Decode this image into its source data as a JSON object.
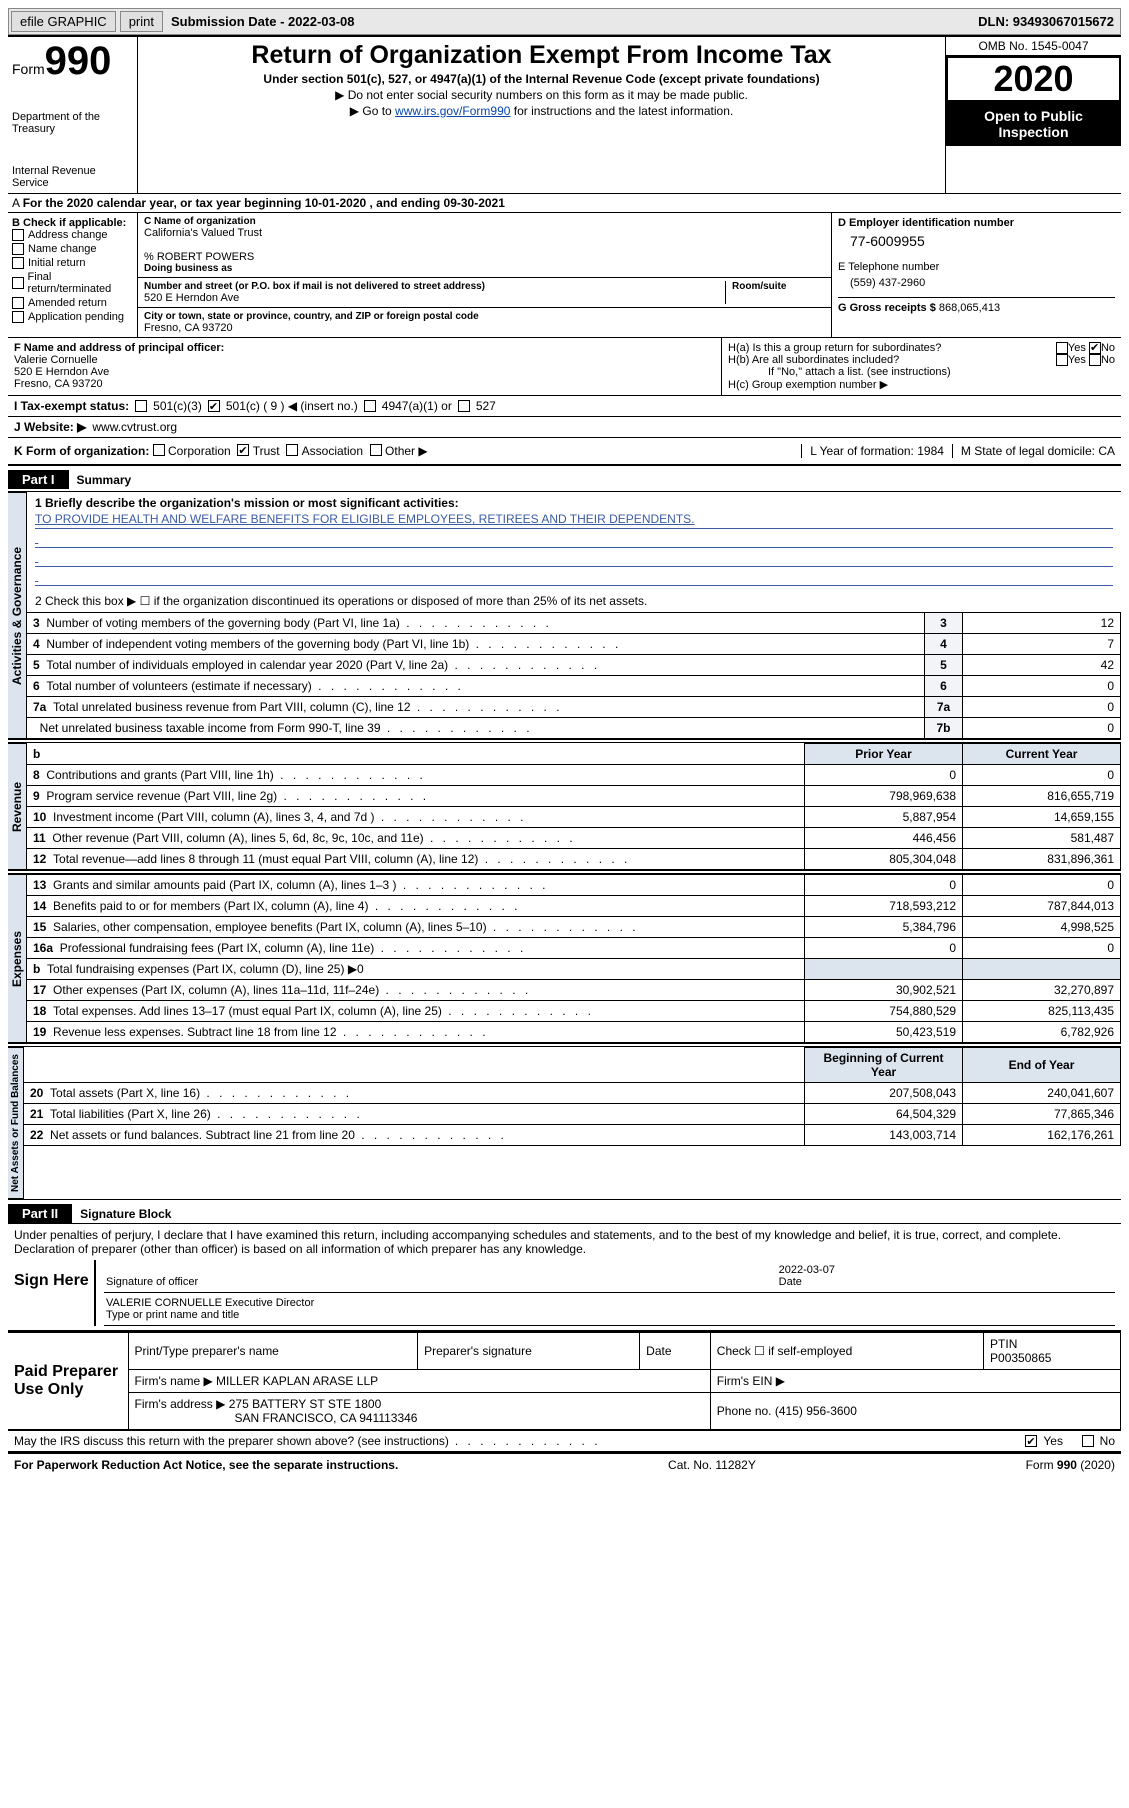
{
  "toolbar": {
    "efile_label": "efile GRAPHIC",
    "print_label": "print",
    "submission_label": "Submission Date - 2022-03-08",
    "dln_label": "DLN: 93493067015672"
  },
  "header": {
    "form_word": "Form",
    "form_number": "990",
    "department": "Department of the Treasury",
    "irs": "Internal Revenue Service",
    "title": "Return of Organization Exempt From Income Tax",
    "subtitle": "Under section 501(c), 527, or 4947(a)(1) of the Internal Revenue Code (except private foundations)",
    "note1": "▶ Do not enter social security numbers on this form as it may be made public.",
    "note2_pre": "▶ Go to ",
    "note2_link": "www.irs.gov/Form990",
    "note2_post": " for instructions and the latest information.",
    "omb": "OMB No. 1545-0047",
    "year": "2020",
    "inspection": "Open to Public Inspection"
  },
  "row_A": "For the 2020 calendar year, or tax year beginning 10-01-2020    , and ending 09-30-2021",
  "section_B": {
    "label": "B Check if applicable:",
    "items": [
      "Address change",
      "Name change",
      "Initial return",
      "Final return/terminated",
      "Amended return",
      "Application pending"
    ]
  },
  "section_C": {
    "name_label": "C Name of organization",
    "name": "California's Valued Trust",
    "care_of": "% ROBERT POWERS",
    "dba_label": "Doing business as",
    "street_label": "Number and street (or P.O. box if mail is not delivered to street address)",
    "room_label": "Room/suite",
    "street": "520 E Herndon Ave",
    "city_label": "City or town, state or province, country, and ZIP or foreign postal code",
    "city": "Fresno, CA  93720"
  },
  "section_D": {
    "label": "D Employer identification number",
    "ein": "77-6009955"
  },
  "section_E": {
    "label": "E Telephone number",
    "phone": "(559) 437-2960"
  },
  "section_G": {
    "label": "G Gross receipts $",
    "value": "868,065,413"
  },
  "section_F": {
    "label": "F Name and address of principal officer:",
    "name": "Valerie Cornuelle",
    "street": "520 E Herndon Ave",
    "city": "Fresno, CA  93720"
  },
  "section_H": {
    "ha": "H(a)  Is this a group return for subordinates?",
    "hb": "H(b)  Are all subordinates included?",
    "hb_note": "If \"No,\" attach a list. (see instructions)",
    "hc": "H(c)  Group exemption number ▶",
    "yes": "Yes",
    "no": "No"
  },
  "row_I": {
    "label": "I  Tax-exempt status:",
    "opts": [
      "501(c)(3)",
      "501(c) ( 9 ) ◀ (insert no.)",
      "4947(a)(1) or",
      "527"
    ]
  },
  "row_J": {
    "label": "J  Website: ▶",
    "url": "www.cvtrust.org"
  },
  "row_K": {
    "label": "K Form of organization:",
    "opts": [
      "Corporation",
      "Trust",
      "Association",
      "Other ▶"
    ],
    "L": "L Year of formation: 1984",
    "M": "M State of legal domicile: CA"
  },
  "part1": {
    "tab": "Part I",
    "title": "Summary",
    "q1_label": "1  Briefly describe the organization's mission or most significant activities:",
    "q1_text": "TO PROVIDE HEALTH AND WELFARE BENEFITS FOR ELIGIBLE EMPLOYEES, RETIREES AND THEIR DEPENDENTS.",
    "q2": "2   Check this box ▶ ☐  if the organization discontinued its operations or disposed of more than 25% of its net assets.",
    "governance": [
      {
        "n": "3",
        "t": "Number of voting members of the governing body (Part VI, line 1a)",
        "k": "3",
        "v": "12"
      },
      {
        "n": "4",
        "t": "Number of independent voting members of the governing body (Part VI, line 1b)",
        "k": "4",
        "v": "7"
      },
      {
        "n": "5",
        "t": "Total number of individuals employed in calendar year 2020 (Part V, line 2a)",
        "k": "5",
        "v": "42"
      },
      {
        "n": "6",
        "t": "Total number of volunteers (estimate if necessary)",
        "k": "6",
        "v": "0"
      },
      {
        "n": "7a",
        "t": "Total unrelated business revenue from Part VIII, column (C), line 12",
        "k": "7a",
        "v": "0"
      },
      {
        "n": "",
        "t": "Net unrelated business taxable income from Form 990-T, line 39",
        "k": "7b",
        "v": "0"
      }
    ],
    "rev_exp_headers": {
      "prior": "Prior Year",
      "current": "Current Year"
    },
    "revenue": [
      {
        "n": "8",
        "t": "Contributions and grants (Part VIII, line 1h)",
        "p": "0",
        "c": "0"
      },
      {
        "n": "9",
        "t": "Program service revenue (Part VIII, line 2g)",
        "p": "798,969,638",
        "c": "816,655,719"
      },
      {
        "n": "10",
        "t": "Investment income (Part VIII, column (A), lines 3, 4, and 7d )",
        "p": "5,887,954",
        "c": "14,659,155"
      },
      {
        "n": "11",
        "t": "Other revenue (Part VIII, column (A), lines 5, 6d, 8c, 9c, 10c, and 11e)",
        "p": "446,456",
        "c": "581,487"
      },
      {
        "n": "12",
        "t": "Total revenue—add lines 8 through 11 (must equal Part VIII, column (A), line 12)",
        "p": "805,304,048",
        "c": "831,896,361"
      }
    ],
    "expenses": [
      {
        "n": "13",
        "t": "Grants and similar amounts paid (Part IX, column (A), lines 1–3 )",
        "p": "0",
        "c": "0"
      },
      {
        "n": "14",
        "t": "Benefits paid to or for members (Part IX, column (A), line 4)",
        "p": "718,593,212",
        "c": "787,844,013"
      },
      {
        "n": "15",
        "t": "Salaries, other compensation, employee benefits (Part IX, column (A), lines 5–10)",
        "p": "5,384,796",
        "c": "4,998,525"
      },
      {
        "n": "16a",
        "t": "Professional fundraising fees (Part IX, column (A), line 11e)",
        "p": "0",
        "c": "0"
      },
      {
        "n": "b",
        "t": "Total fundraising expenses (Part IX, column (D), line 25) ▶0",
        "p": "",
        "c": ""
      },
      {
        "n": "17",
        "t": "Other expenses (Part IX, column (A), lines 11a–11d, 11f–24e)",
        "p": "30,902,521",
        "c": "32,270,897"
      },
      {
        "n": "18",
        "t": "Total expenses. Add lines 13–17 (must equal Part IX, column (A), line 25)",
        "p": "754,880,529",
        "c": "825,113,435"
      },
      {
        "n": "19",
        "t": "Revenue less expenses. Subtract line 18 from line 12",
        "p": "50,423,519",
        "c": "6,782,926"
      }
    ],
    "na_headers": {
      "begin": "Beginning of Current Year",
      "end": "End of Year"
    },
    "net_assets": [
      {
        "n": "20",
        "t": "Total assets (Part X, line 16)",
        "p": "207,508,043",
        "c": "240,041,607"
      },
      {
        "n": "21",
        "t": "Total liabilities (Part X, line 26)",
        "p": "64,504,329",
        "c": "77,865,346"
      },
      {
        "n": "22",
        "t": "Net assets or fund balances. Subtract line 21 from line 20",
        "p": "143,003,714",
        "c": "162,176,261"
      }
    ],
    "vert_labels": {
      "gov": "Activities & Governance",
      "rev": "Revenue",
      "exp": "Expenses",
      "na": "Net Assets or Fund Balances"
    }
  },
  "part2": {
    "tab": "Part II",
    "title": "Signature Block",
    "perjury": "Under penalties of perjury, I declare that I have examined this return, including accompanying schedules and statements, and to the best of my knowledge and belief, it is true, correct, and complete. Declaration of preparer (other than officer) is based on all information of which preparer has any knowledge.",
    "sign_here": "Sign Here",
    "sig_officer": "Signature of officer",
    "sig_date": "2022-03-07",
    "date_label": "Date",
    "officer_name": "VALERIE CORNUELLE  Executive Director",
    "type_label": "Type or print name and title"
  },
  "preparer": {
    "left": "Paid Preparer Use Only",
    "cols": {
      "name": "Print/Type preparer's name",
      "sig": "Preparer's signature",
      "date": "Date",
      "check": "Check ☐ if self-employed",
      "ptin_label": "PTIN",
      "ptin": "P00350865"
    },
    "firm_name_label": "Firm's name    ▶",
    "firm_name": "MILLER KAPLAN ARASE LLP",
    "firm_ein_label": "Firm's EIN ▶",
    "firm_addr_label": "Firm's address ▶",
    "firm_addr1": "275 BATTERY ST STE 1800",
    "firm_addr2": "SAN FRANCISCO, CA  941113346",
    "phone_label": "Phone no.",
    "phone": "(415) 956-3600"
  },
  "discuss": {
    "q": "May the IRS discuss this return with the preparer shown above? (see instructions)",
    "yes": "Yes",
    "no": "No"
  },
  "footer": {
    "left": "For Paperwork Reduction Act Notice, see the separate instructions.",
    "mid": "Cat. No. 11282Y",
    "right": "Form 990 (2020)"
  }
}
